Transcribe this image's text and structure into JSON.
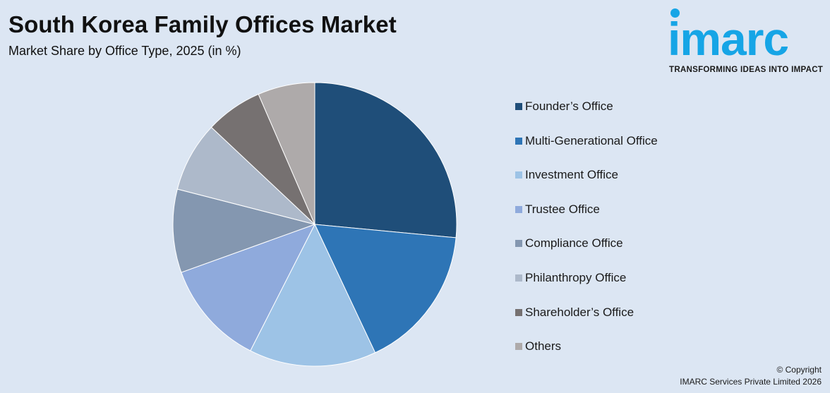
{
  "header": {
    "title": "South Korea Family Offices Market",
    "subtitle": "Market Share by Office Type, 2025 (in %)"
  },
  "logo": {
    "wordmark": "imarc",
    "tagline": "TRANSFORMING IDEAS INTO IMPACT",
    "color": "#16a5e6"
  },
  "chart_data": {
    "type": "pie",
    "title": "South Korea Family Offices Market",
    "subtitle": "Market Share by Office Type, 2025 (in %)",
    "legend_position": "right",
    "slices": [
      {
        "label": "Founder’s Office",
        "value": 26.5,
        "color": "#1f4e79"
      },
      {
        "label": "Multi-Generational Office",
        "value": 16.5,
        "color": "#2e75b6"
      },
      {
        "label": "Investment Office",
        "value": 14.5,
        "color": "#9dc3e6"
      },
      {
        "label": "Trustee Office",
        "value": 12.0,
        "color": "#8faadc"
      },
      {
        "label": "Compliance Office",
        "value": 9.5,
        "color": "#8497b0"
      },
      {
        "label": "Philanthropy Office",
        "value": 8.0,
        "color": "#adb9ca"
      },
      {
        "label": "Shareholder’s Office",
        "value": 6.5,
        "color": "#767171"
      },
      {
        "label": "Others",
        "value": 6.5,
        "color": "#aeaaaa"
      }
    ]
  },
  "footer": {
    "copyright_line1": "© Copyright",
    "copyright_line2": "IMARC Services Private Limited 2026"
  }
}
